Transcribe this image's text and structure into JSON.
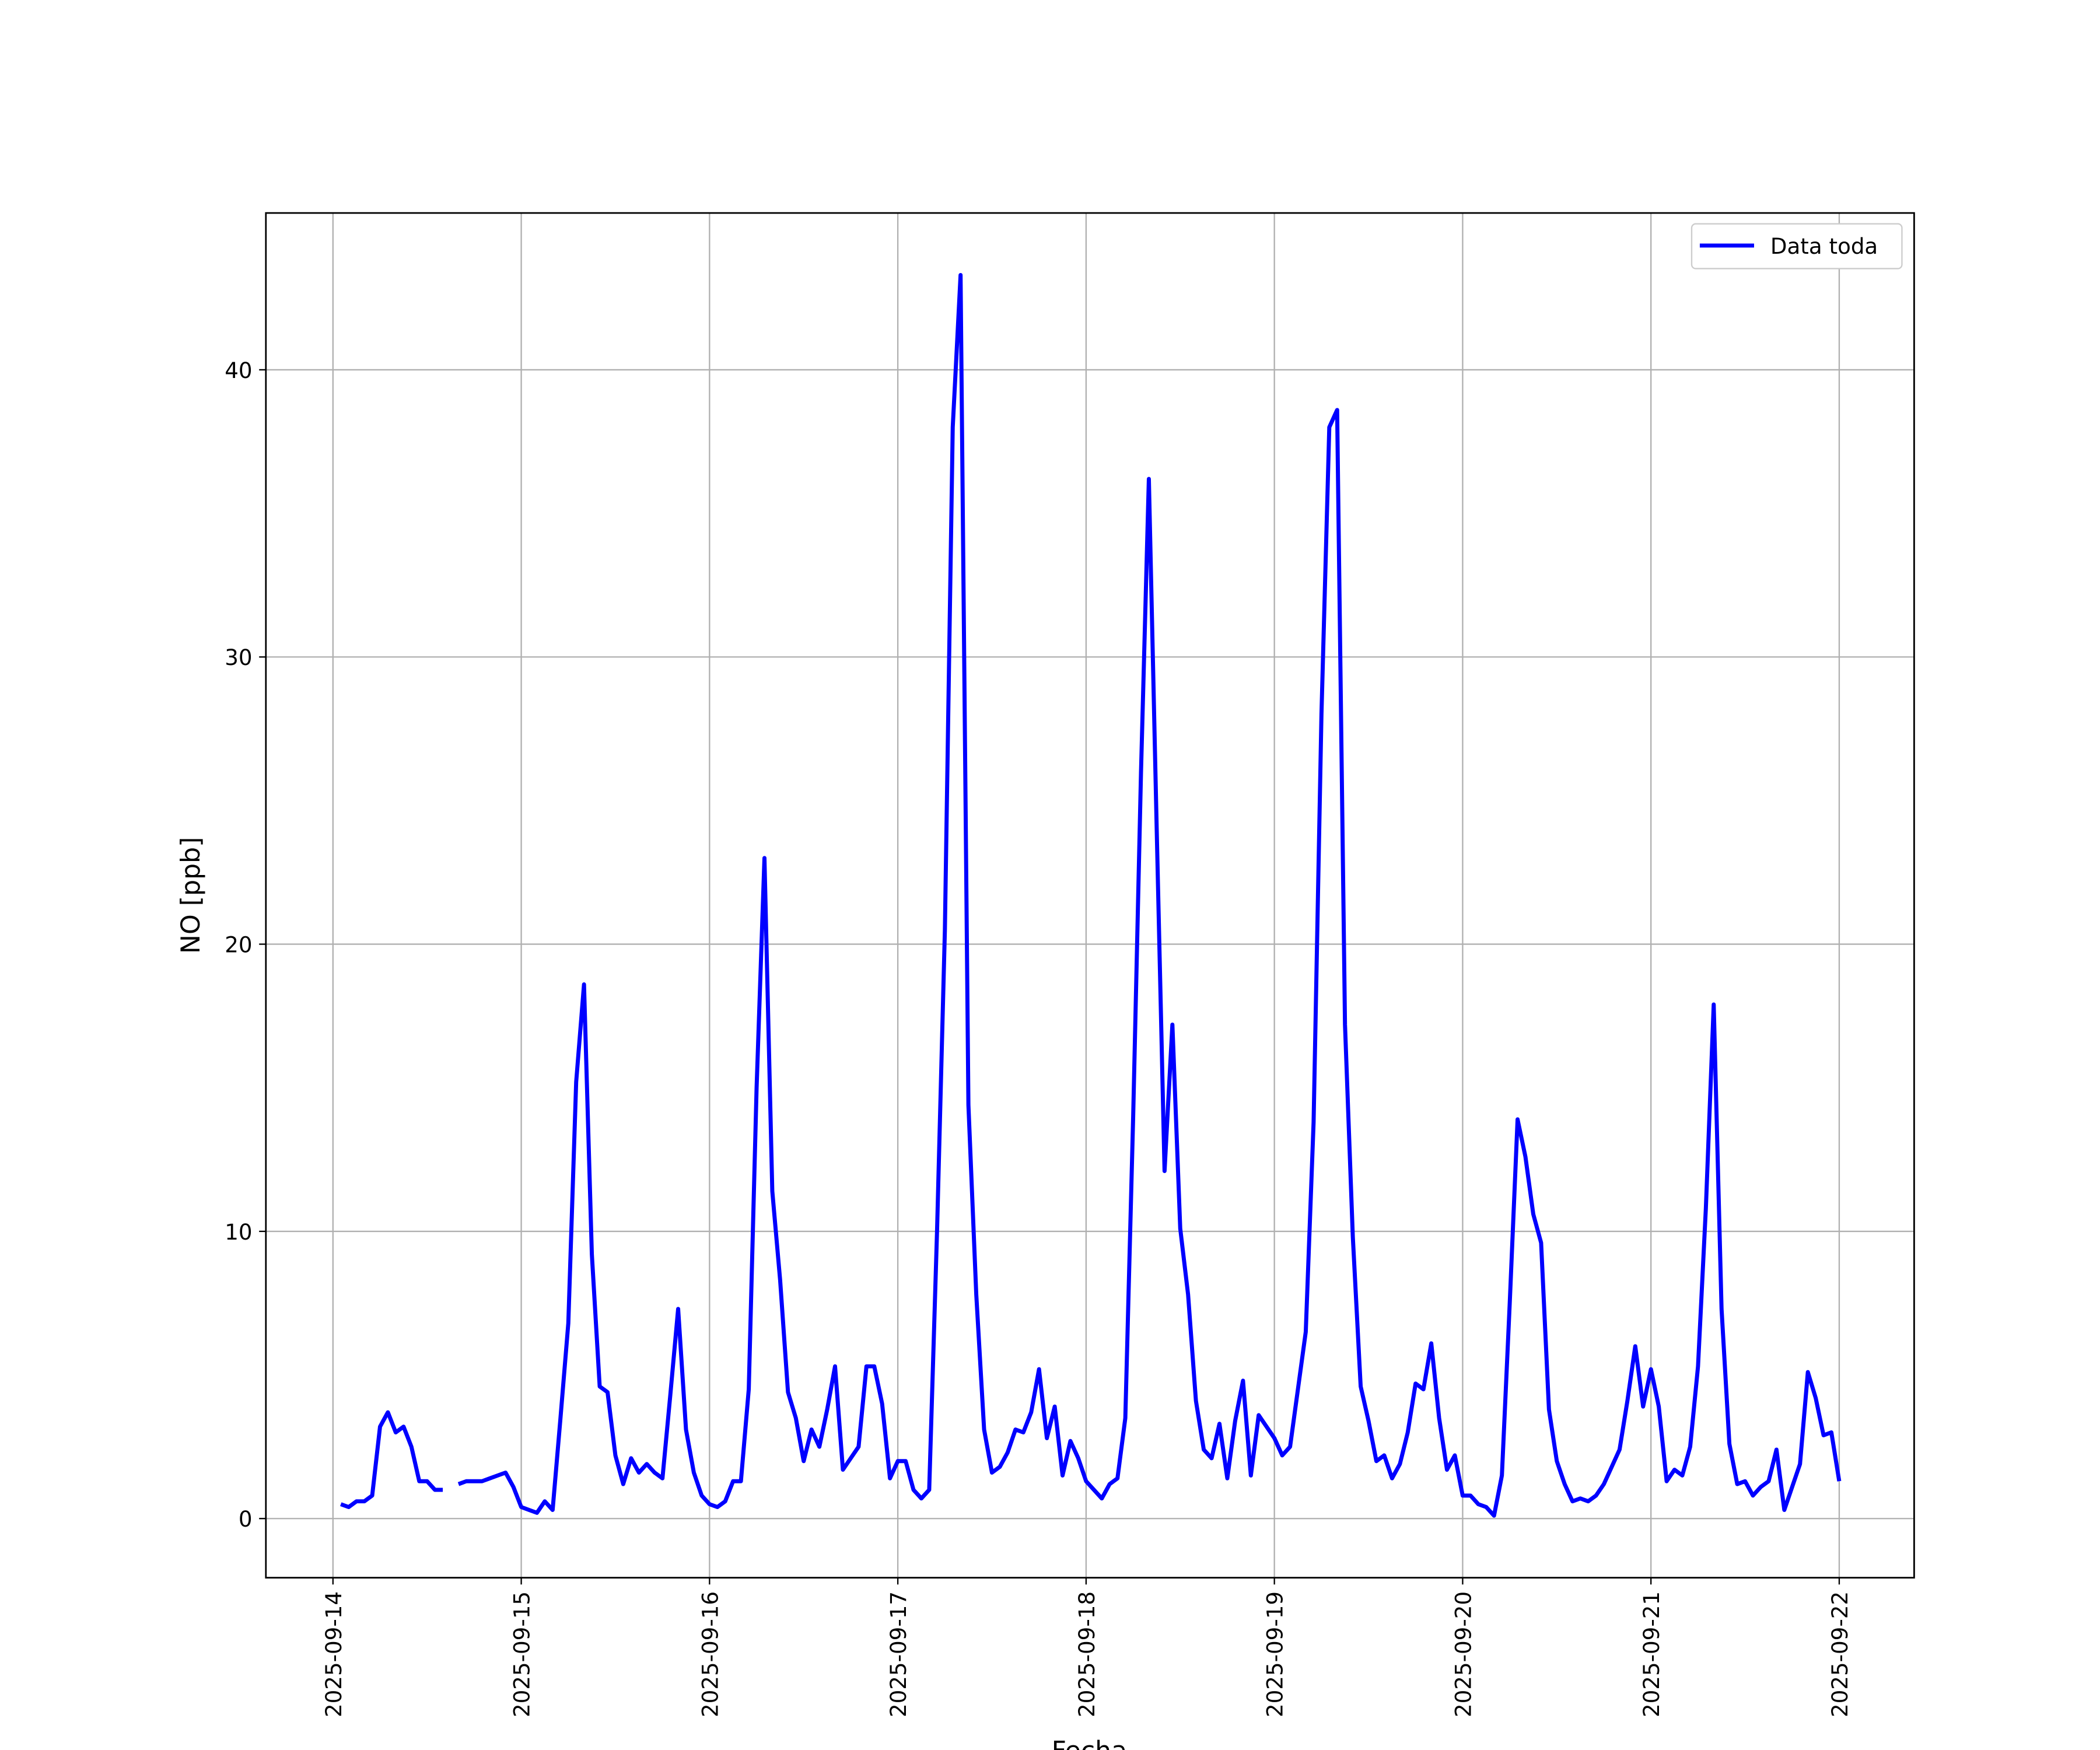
{
  "chart_data": {
    "type": "line",
    "xlabel": "Fecha",
    "ylabel": "NO [ppb]",
    "x": [
      "2025-09-14 01:00",
      "2025-09-14 02:00",
      "2025-09-14 03:00",
      "2025-09-14 04:00",
      "2025-09-14 05:00",
      "2025-09-14 06:00",
      "2025-09-14 07:00",
      "2025-09-14 08:00",
      "2025-09-14 09:00",
      "2025-09-14 10:00",
      "2025-09-14 11:00",
      "2025-09-14 12:00",
      "2025-09-14 13:00",
      "2025-09-14 14:00",
      "2025-09-14 15:00",
      "2025-09-14 16:00",
      "2025-09-14 17:00",
      "2025-09-14 18:00",
      "2025-09-14 19:00",
      "2025-09-14 20:00",
      "2025-09-14 21:00",
      "2025-09-14 22:00",
      "2025-09-14 23:00",
      "2025-09-15 00:00",
      "2025-09-15 01:00",
      "2025-09-15 02:00",
      "2025-09-15 03:00",
      "2025-09-15 04:00",
      "2025-09-15 05:00",
      "2025-09-15 06:00",
      "2025-09-15 07:00",
      "2025-09-15 08:00",
      "2025-09-15 09:00",
      "2025-09-15 10:00",
      "2025-09-15 11:00",
      "2025-09-15 12:00",
      "2025-09-15 13:00",
      "2025-09-15 14:00",
      "2025-09-15 15:00",
      "2025-09-15 16:00",
      "2025-09-15 17:00",
      "2025-09-15 18:00",
      "2025-09-15 19:00",
      "2025-09-15 20:00",
      "2025-09-15 21:00",
      "2025-09-15 22:00",
      "2025-09-15 23:00",
      "2025-09-16 00:00",
      "2025-09-16 01:00",
      "2025-09-16 02:00",
      "2025-09-16 03:00",
      "2025-09-16 04:00",
      "2025-09-16 05:00",
      "2025-09-16 06:00",
      "2025-09-16 07:00",
      "2025-09-16 08:00",
      "2025-09-16 09:00",
      "2025-09-16 10:00",
      "2025-09-16 11:00",
      "2025-09-16 12:00",
      "2025-09-16 13:00",
      "2025-09-16 14:00",
      "2025-09-16 15:00",
      "2025-09-16 16:00",
      "2025-09-16 17:00",
      "2025-09-16 18:00",
      "2025-09-16 19:00",
      "2025-09-16 20:00",
      "2025-09-16 21:00",
      "2025-09-16 22:00",
      "2025-09-16 23:00",
      "2025-09-17 00:00",
      "2025-09-17 01:00",
      "2025-09-17 02:00",
      "2025-09-17 03:00",
      "2025-09-17 04:00",
      "2025-09-17 05:00",
      "2025-09-17 06:00",
      "2025-09-17 07:00",
      "2025-09-17 08:00",
      "2025-09-17 09:00",
      "2025-09-17 10:00",
      "2025-09-17 11:00",
      "2025-09-17 12:00",
      "2025-09-17 13:00",
      "2025-09-17 14:00",
      "2025-09-17 15:00",
      "2025-09-17 16:00",
      "2025-09-17 17:00",
      "2025-09-17 18:00",
      "2025-09-17 19:00",
      "2025-09-17 20:00",
      "2025-09-17 21:00",
      "2025-09-17 22:00",
      "2025-09-17 23:00",
      "2025-09-18 00:00",
      "2025-09-18 01:00",
      "2025-09-18 02:00",
      "2025-09-18 03:00",
      "2025-09-18 04:00",
      "2025-09-18 05:00",
      "2025-09-18 06:00",
      "2025-09-18 07:00",
      "2025-09-18 08:00",
      "2025-09-18 09:00",
      "2025-09-18 10:00",
      "2025-09-18 11:00",
      "2025-09-18 12:00",
      "2025-09-18 13:00",
      "2025-09-18 14:00",
      "2025-09-18 15:00",
      "2025-09-18 16:00",
      "2025-09-18 17:00",
      "2025-09-18 18:00",
      "2025-09-18 19:00",
      "2025-09-18 20:00",
      "2025-09-18 21:00",
      "2025-09-18 22:00",
      "2025-09-18 23:00",
      "2025-09-19 00:00",
      "2025-09-19 01:00",
      "2025-09-19 02:00",
      "2025-09-19 03:00",
      "2025-09-19 04:00",
      "2025-09-19 05:00",
      "2025-09-19 06:00",
      "2025-09-19 07:00",
      "2025-09-19 08:00",
      "2025-09-19 09:00",
      "2025-09-19 10:00",
      "2025-09-19 11:00",
      "2025-09-19 12:00",
      "2025-09-19 13:00",
      "2025-09-19 14:00",
      "2025-09-19 15:00",
      "2025-09-19 16:00",
      "2025-09-19 17:00",
      "2025-09-19 18:00",
      "2025-09-19 19:00",
      "2025-09-19 20:00",
      "2025-09-19 21:00",
      "2025-09-19 22:00",
      "2025-09-19 23:00",
      "2025-09-20 00:00",
      "2025-09-20 01:00",
      "2025-09-20 02:00",
      "2025-09-20 03:00",
      "2025-09-20 04:00",
      "2025-09-20 05:00",
      "2025-09-20 06:00",
      "2025-09-20 07:00",
      "2025-09-20 08:00",
      "2025-09-20 09:00",
      "2025-09-20 10:00",
      "2025-09-20 11:00",
      "2025-09-20 12:00",
      "2025-09-20 13:00",
      "2025-09-20 14:00",
      "2025-09-20 15:00",
      "2025-09-20 16:00",
      "2025-09-20 17:00",
      "2025-09-20 18:00",
      "2025-09-20 19:00",
      "2025-09-20 20:00",
      "2025-09-20 21:00",
      "2025-09-20 22:00",
      "2025-09-20 23:00",
      "2025-09-21 00:00",
      "2025-09-21 01:00",
      "2025-09-21 02:00",
      "2025-09-21 03:00",
      "2025-09-21 04:00",
      "2025-09-21 05:00",
      "2025-09-21 06:00",
      "2025-09-21 07:00",
      "2025-09-21 08:00",
      "2025-09-21 09:00",
      "2025-09-21 10:00",
      "2025-09-21 11:00",
      "2025-09-21 12:00",
      "2025-09-21 13:00",
      "2025-09-21 14:00",
      "2025-09-21 15:00",
      "2025-09-21 16:00",
      "2025-09-21 17:00",
      "2025-09-21 18:00",
      "2025-09-21 19:00",
      "2025-09-21 20:00",
      "2025-09-21 21:00",
      "2025-09-21 22:00",
      "2025-09-21 23:00",
      "2025-09-22 00:00"
    ],
    "series": [
      {
        "name": "Data toda",
        "color": "#0000ff",
        "values": [
          0.5,
          0.4,
          0.6,
          0.6,
          0.8,
          3.2,
          3.7,
          3.0,
          3.2,
          2.5,
          1.3,
          1.3,
          1.0,
          1.0,
          null,
          1.2,
          1.3,
          1.3,
          1.3,
          1.4,
          1.5,
          1.6,
          1.1,
          0.4,
          0.3,
          0.2,
          0.6,
          0.3,
          3.5,
          6.8,
          15.2,
          18.6,
          9.2,
          4.6,
          4.4,
          2.2,
          1.2,
          2.1,
          1.6,
          1.9,
          1.6,
          1.4,
          4.3,
          7.3,
          3.1,
          1.6,
          0.8,
          0.5,
          0.4,
          0.6,
          1.3,
          1.3,
          4.5,
          15.0,
          23.0,
          11.4,
          8.3,
          4.4,
          3.5,
          2.0,
          3.1,
          2.5,
          3.8,
          5.3,
          1.7,
          2.1,
          2.5,
          5.3,
          5.3,
          4.0,
          1.4,
          2.0,
          2.0,
          1.0,
          0.7,
          1.0,
          10.0,
          20.5,
          38.0,
          43.3,
          14.4,
          7.8,
          3.1,
          1.6,
          1.8,
          2.3,
          3.1,
          3.0,
          3.7,
          5.2,
          2.8,
          3.9,
          1.5,
          2.7,
          2.1,
          1.3,
          1.0,
          0.7,
          1.2,
          1.4,
          3.5,
          14.0,
          26.0,
          36.2,
          24.0,
          12.1,
          17.2,
          10.1,
          7.8,
          4.1,
          2.4,
          2.1,
          3.3,
          1.4,
          3.4,
          4.8,
          1.5,
          3.6,
          3.2,
          2.8,
          2.2,
          2.5,
          4.5,
          6.5,
          13.8,
          28.0,
          38.0,
          38.6,
          17.2,
          9.8,
          4.6,
          3.4,
          2.0,
          2.2,
          1.4,
          1.9,
          3.0,
          4.7,
          4.5,
          6.1,
          3.5,
          1.7,
          2.2,
          0.8,
          0.8,
          0.5,
          0.4,
          0.1,
          1.5,
          7.5,
          13.9,
          12.6,
          10.6,
          9.6,
          3.8,
          2.0,
          1.2,
          0.6,
          0.7,
          0.6,
          0.8,
          1.2,
          1.8,
          2.4,
          4.1,
          6.0,
          3.9,
          5.2,
          3.9,
          1.3,
          1.7,
          1.5,
          2.5,
          5.3,
          10.8,
          17.9,
          7.3,
          2.6,
          1.2,
          1.3,
          0.8,
          1.1,
          1.3,
          2.4,
          0.3,
          1.1,
          1.9,
          5.1,
          4.2,
          2.9,
          3.0,
          1.3
        ]
      }
    ],
    "xlim": [
      "2025-09-13 15:27",
      "2025-09-22 09:33"
    ],
    "xticks": [
      "2025-09-14",
      "2025-09-15",
      "2025-09-16",
      "2025-09-17",
      "2025-09-18",
      "2025-09-19",
      "2025-09-20",
      "2025-09-21",
      "2025-09-22"
    ],
    "ylim": [
      -2.06,
      45.46
    ],
    "yticks": [
      0,
      10,
      20,
      30,
      40
    ],
    "grid": true,
    "legend": "upper right"
  }
}
